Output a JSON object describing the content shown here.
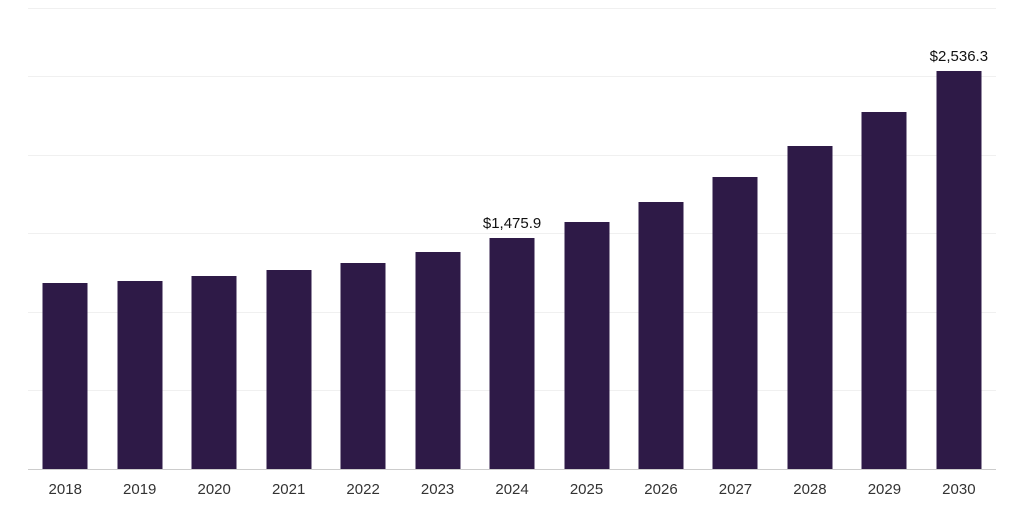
{
  "chart_data": {
    "type": "bar",
    "title": "",
    "xlabel": "",
    "ylabel": "",
    "categories": [
      "2018",
      "2019",
      "2020",
      "2021",
      "2022",
      "2023",
      "2024",
      "2025",
      "2026",
      "2027",
      "2028",
      "2029",
      "2030"
    ],
    "values": [
      1190,
      1205,
      1235,
      1275,
      1320,
      1385,
      1475.9,
      1580,
      1705,
      1865,
      2060,
      2280,
      2536.3
    ],
    "value_labels": [
      "",
      "",
      "",
      "",
      "",
      "",
      "$1,475.9",
      "",
      "",
      "",
      "",
      "",
      "$2,536.3"
    ],
    "ylim": [
      0,
      2940
    ],
    "gridline_interval": 500,
    "grid": true,
    "legend": false,
    "bar_color": "#2e1a47",
    "gridline_color": "#f0f0f0",
    "axis_line_color": "#cccccc",
    "label_color": "#111111",
    "tick_label_color": "#333333"
  }
}
